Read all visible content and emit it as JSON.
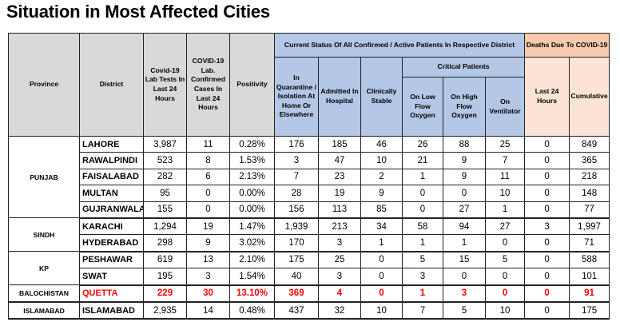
{
  "page": {
    "title": "Situation in Most Affected Cities"
  },
  "table": {
    "headers": {
      "province": "Province",
      "district": "District",
      "lab_tests": "Covid-19 Lab Tests In Last 24 Hours",
      "confirmed_cases": "COVID-19 Lab. Confirmed Cases In Last 24 Hours",
      "positivity": "Positivity",
      "status_group": "Current Status Of All Confirmed / Active Patients In Respective District",
      "quarantine": "In Quarantine / Isolation At Home Or Elsewhere",
      "admitted": "Admitted In Hospital",
      "stable": "Clinically Stable",
      "critical_group": "Critical Patients",
      "low_flow": "On Low Flow Oxygen",
      "high_flow": "On High Flow Oxygen",
      "ventilator": "On Ventilator",
      "deaths_group": "Deaths Due To COVID-19",
      "deaths_24h": "Last 24 Hours",
      "deaths_cumulative": "Cumulative"
    },
    "provinces": [
      {
        "name": "PUNJAB",
        "rows": [
          {
            "district": "LAHORE",
            "tests": "3,987",
            "cases": "11",
            "positivity": "0.28%",
            "quarantine": "176",
            "admitted": "185",
            "stable": "46",
            "low_flow": "26",
            "high_flow": "88",
            "ventilator": "25",
            "deaths_24h": "0",
            "deaths_cum": "849"
          },
          {
            "district": "RAWALPINDI",
            "tests": "523",
            "cases": "8",
            "positivity": "1.53%",
            "quarantine": "3",
            "admitted": "47",
            "stable": "10",
            "low_flow": "21",
            "high_flow": "9",
            "ventilator": "7",
            "deaths_24h": "0",
            "deaths_cum": "365"
          },
          {
            "district": "FAISALABAD",
            "tests": "282",
            "cases": "6",
            "positivity": "2.13%",
            "quarantine": "7",
            "admitted": "23",
            "stable": "2",
            "low_flow": "1",
            "high_flow": "9",
            "ventilator": "11",
            "deaths_24h": "0",
            "deaths_cum": "218"
          },
          {
            "district": "MULTAN",
            "tests": "95",
            "cases": "0",
            "positivity": "0.00%",
            "quarantine": "28",
            "admitted": "19",
            "stable": "9",
            "low_flow": "0",
            "high_flow": "0",
            "ventilator": "10",
            "deaths_24h": "0",
            "deaths_cum": "148"
          },
          {
            "district": "GUJRANWALA",
            "tests": "155",
            "cases": "0",
            "positivity": "0.00%",
            "quarantine": "156",
            "admitted": "113",
            "stable": "85",
            "low_flow": "0",
            "high_flow": "27",
            "ventilator": "1",
            "deaths_24h": "0",
            "deaths_cum": "77"
          }
        ]
      },
      {
        "name": "SINDH",
        "rows": [
          {
            "district": "KARACHI",
            "tests": "1,294",
            "cases": "19",
            "positivity": "1.47%",
            "quarantine": "1,939",
            "admitted": "213",
            "stable": "34",
            "low_flow": "58",
            "high_flow": "94",
            "ventilator": "27",
            "deaths_24h": "3",
            "deaths_cum": "1,997"
          },
          {
            "district": "HYDERABAD",
            "tests": "298",
            "cases": "9",
            "positivity": "3.02%",
            "quarantine": "170",
            "admitted": "3",
            "stable": "1",
            "low_flow": "1",
            "high_flow": "1",
            "ventilator": "0",
            "deaths_24h": "0",
            "deaths_cum": "71"
          }
        ]
      },
      {
        "name": "KP",
        "rows": [
          {
            "district": "PESHAWAR",
            "tests": "619",
            "cases": "13",
            "positivity": "2.10%",
            "quarantine": "175",
            "admitted": "25",
            "stable": "0",
            "low_flow": "5",
            "high_flow": "15",
            "ventilator": "5",
            "deaths_24h": "0",
            "deaths_cum": "588"
          },
          {
            "district": "SWAT",
            "tests": "195",
            "cases": "3",
            "positivity": "1.54%",
            "quarantine": "40",
            "admitted": "3",
            "stable": "0",
            "low_flow": "3",
            "high_flow": "0",
            "ventilator": "0",
            "deaths_24h": "0",
            "deaths_cum": "101"
          }
        ]
      },
      {
        "name": "BALOCHISTAN",
        "highlight": true,
        "rows": [
          {
            "district": "QUETTA",
            "tests": "229",
            "cases": "30",
            "positivity": "13.10%",
            "quarantine": "369",
            "admitted": "4",
            "stable": "0",
            "low_flow": "1",
            "high_flow": "3",
            "ventilator": "0",
            "deaths_24h": "0",
            "deaths_cum": "91"
          }
        ]
      },
      {
        "name": "ISLAMABAD",
        "rows": [
          {
            "district": "ISLAMABAD",
            "tests": "2,935",
            "cases": "14",
            "positivity": "0.48%",
            "quarantine": "437",
            "admitted": "32",
            "stable": "10",
            "low_flow": "7",
            "high_flow": "5",
            "ventilator": "10",
            "deaths_24h": "0",
            "deaths_cum": "175"
          }
        ]
      }
    ],
    "colors": {
      "highlight_text": "#ff0000",
      "header_grey": "#d9d9d9",
      "header_blue": "#b4c7e7",
      "header_orange": "#f7caac",
      "header_light_orange": "#fbe4d5"
    }
  }
}
